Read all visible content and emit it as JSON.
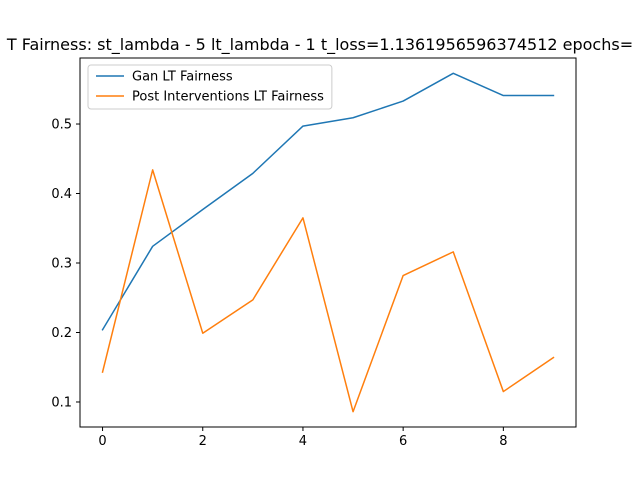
{
  "chart_data": {
    "type": "line",
    "title": "T Fairness: st_lambda - 5 lt_lambda - 1 t_loss=1.1361956596374512 epochs=",
    "xlabel": "",
    "ylabel": "",
    "x": [
      0,
      1,
      2,
      3,
      4,
      5,
      6,
      7,
      8,
      9
    ],
    "xlim": [
      -0.45,
      9.45
    ],
    "ylim": [
      0.064,
      0.595
    ],
    "xticks": [
      0,
      2,
      4,
      6,
      8
    ],
    "yticks": [
      0.1,
      0.2,
      0.3,
      0.4,
      0.5
    ],
    "xtick_labels": [
      "0",
      "2",
      "4",
      "6",
      "8"
    ],
    "ytick_labels": [
      "0.1",
      "0.2",
      "0.3",
      "0.4",
      "0.5"
    ],
    "grid": false,
    "legend_position": "top-left",
    "series": [
      {
        "name": "Gan LT Fairness",
        "color": "#1f77b4",
        "values": [
          0.204,
          0.324,
          0.377,
          0.429,
          0.497,
          0.509,
          0.533,
          0.573,
          0.541,
          0.541
        ]
      },
      {
        "name": "Post Interventions LT Fairness",
        "color": "#ff7f0e",
        "values": [
          0.143,
          0.434,
          0.199,
          0.247,
          0.365,
          0.086,
          0.282,
          0.316,
          0.115,
          0.164
        ]
      }
    ]
  }
}
